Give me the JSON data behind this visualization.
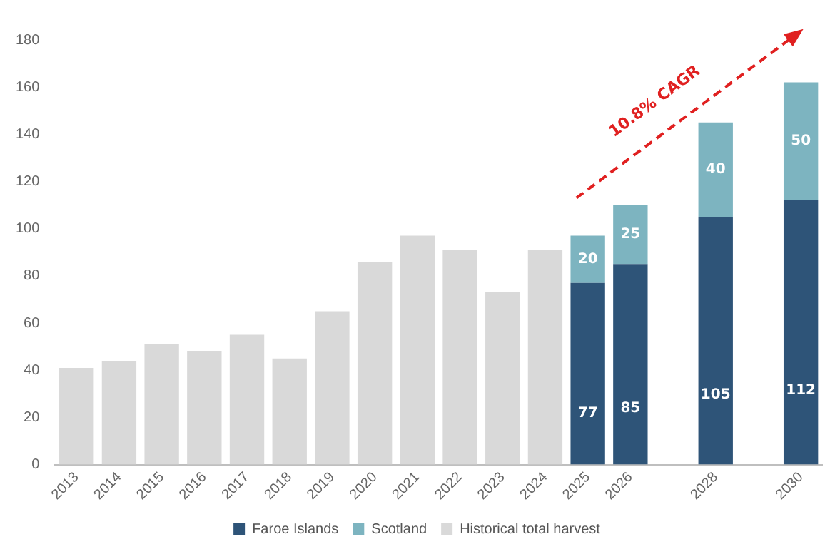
{
  "chart_data": {
    "type": "bar",
    "stacked": true,
    "categories": [
      "2013",
      "2014",
      "2015",
      "2016",
      "2017",
      "2018",
      "2019",
      "2020",
      "2021",
      "2022",
      "2023",
      "2024",
      "2025",
      "2026",
      null,
      "2028",
      null,
      "2030"
    ],
    "series": [
      {
        "name": "Faroe Islands",
        "color": "#2e5478",
        "values": [
          null,
          null,
          null,
          null,
          null,
          null,
          null,
          null,
          null,
          null,
          null,
          null,
          77,
          85,
          null,
          105,
          null,
          112
        ],
        "value_labels": [
          null,
          null,
          null,
          null,
          null,
          null,
          null,
          null,
          null,
          null,
          null,
          null,
          "77",
          "85",
          null,
          "105",
          null,
          "112"
        ]
      },
      {
        "name": "Scotland",
        "color": "#7db4c0",
        "values": [
          null,
          null,
          null,
          null,
          null,
          null,
          null,
          null,
          null,
          null,
          null,
          null,
          20,
          25,
          null,
          40,
          null,
          50
        ],
        "value_labels": [
          null,
          null,
          null,
          null,
          null,
          null,
          null,
          null,
          null,
          null,
          null,
          null,
          "20",
          "25",
          null,
          "40",
          null,
          "50"
        ]
      },
      {
        "name": "Historical total harvest",
        "color": "#d9d9d9",
        "values": [
          41,
          44,
          51,
          48,
          55,
          45,
          65,
          86,
          97,
          91,
          73,
          91,
          null,
          null,
          null,
          null,
          null,
          null
        ]
      }
    ],
    "ylim": [
      0,
      180
    ],
    "yticks": [
      0,
      20,
      40,
      60,
      80,
      100,
      120,
      140,
      160,
      180
    ],
    "grid": false,
    "legend": "bottom",
    "annotations": [
      "10.8% CAGR"
    ]
  }
}
